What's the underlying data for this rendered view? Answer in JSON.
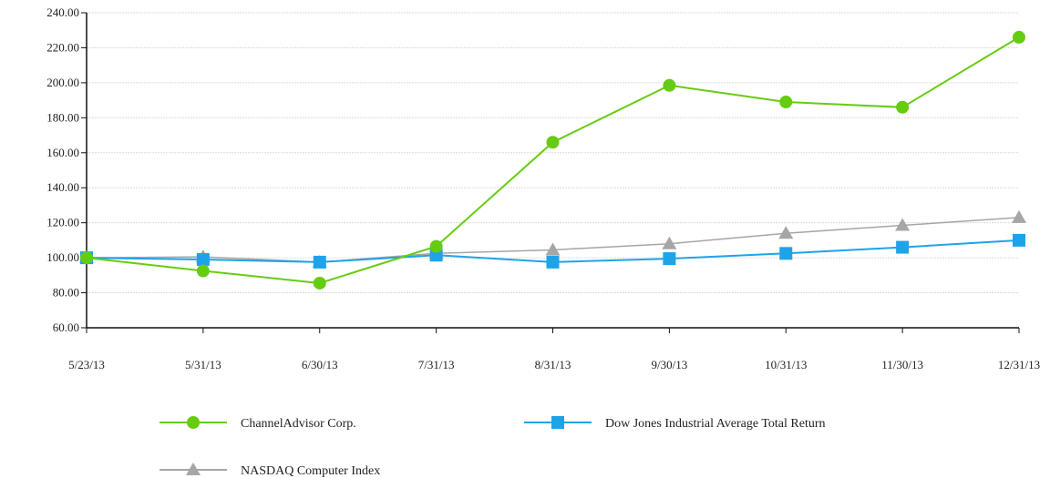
{
  "chart_data": {
    "type": "line",
    "title": "",
    "xlabel": "",
    "ylabel": "",
    "categories": [
      "5/23/13",
      "5/31/13",
      "6/30/13",
      "7/31/13",
      "8/31/13",
      "9/30/13",
      "10/31/13",
      "11/30/13",
      "12/31/13"
    ],
    "ylim": [
      60,
      240
    ],
    "yticks": [
      "60.00",
      "80.00",
      "100.00",
      "120.00",
      "140.00",
      "160.00",
      "180.00",
      "200.00",
      "220.00",
      "240.00"
    ],
    "grid": "horizontal",
    "legend_position": "bottom",
    "series": [
      {
        "name": "ChannelAdvisor Corp.",
        "color": "#66cc11",
        "marker": "circle",
        "values": [
          100,
          92.5,
          85.5,
          106.5,
          166,
          198.5,
          189,
          186,
          226
        ]
      },
      {
        "name": "Dow Jones Industrial Average Total Return",
        "color": "#1fa3e8",
        "marker": "square",
        "values": [
          100,
          99,
          97.5,
          101.5,
          97.5,
          99.5,
          102.5,
          106,
          110
        ]
      },
      {
        "name": "NASDAQ Computer Index",
        "color": "#a6a6a6",
        "marker": "triangle",
        "values": [
          100,
          100.5,
          97.5,
          102.5,
          104.5,
          108,
          114,
          118.5,
          123
        ]
      }
    ]
  }
}
